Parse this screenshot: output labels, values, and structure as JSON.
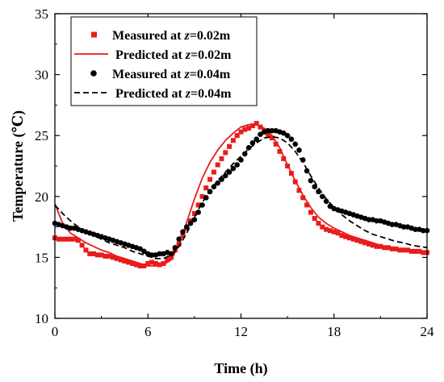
{
  "chart_data": {
    "type": "line",
    "xlabel": "Time (h)",
    "ylabel": "Temperature (℃)",
    "xlim": [
      0,
      24
    ],
    "ylim": [
      10,
      35
    ],
    "xticks": [
      "0",
      "6",
      "12",
      "18",
      "24"
    ],
    "yticks": [
      "10",
      "15",
      "20",
      "25",
      "30",
      "35"
    ],
    "grid": false,
    "legend_position": "top-left",
    "series": [
      {
        "name_prefix": "Measured at ",
        "name_var": "z",
        "name_suffix": "=0.02m",
        "style": "markers",
        "marker": "square",
        "color": "#e81c1c",
        "x": [
          0,
          0.25,
          0.5,
          0.75,
          1,
          1.25,
          1.5,
          1.75,
          2,
          2.25,
          2.5,
          2.75,
          3,
          3.25,
          3.5,
          3.75,
          4,
          4.25,
          4.5,
          4.75,
          5,
          5.25,
          5.5,
          5.75,
          6,
          6.25,
          6.5,
          6.75,
          7,
          7.25,
          7.5,
          7.75,
          8,
          8.25,
          8.5,
          8.75,
          9,
          9.25,
          9.5,
          9.75,
          10,
          10.25,
          10.5,
          10.75,
          11,
          11.25,
          11.5,
          11.75,
          12,
          12.25,
          12.5,
          12.75,
          13,
          13.25,
          13.5,
          13.75,
          14,
          14.25,
          14.5,
          14.75,
          15,
          15.25,
          15.5,
          15.75,
          16,
          16.25,
          16.5,
          16.75,
          17,
          17.25,
          17.5,
          17.75,
          18,
          18.25,
          18.5,
          18.75,
          19,
          19.25,
          19.5,
          19.75,
          20,
          20.25,
          20.5,
          20.75,
          21,
          21.25,
          21.5,
          21.75,
          22,
          22.25,
          22.5,
          22.75,
          23,
          23.25,
          23.5,
          23.75,
          24
        ],
        "y": [
          16.6,
          16.5,
          16.5,
          16.5,
          16.5,
          16.5,
          16.4,
          16.0,
          15.6,
          15.3,
          15.3,
          15.2,
          15.2,
          15.1,
          15.1,
          15.0,
          14.9,
          14.8,
          14.7,
          14.6,
          14.5,
          14.4,
          14.3,
          14.3,
          14.5,
          14.6,
          14.5,
          14.4,
          14.5,
          14.8,
          15.0,
          15.6,
          16.1,
          16.8,
          17.4,
          18.0,
          18.6,
          19.3,
          20.0,
          20.7,
          21.4,
          22.0,
          22.6,
          23.1,
          23.6,
          24.1,
          24.6,
          25.0,
          25.3,
          25.5,
          25.6,
          25.8,
          26.0,
          25.7,
          25.4,
          25.1,
          24.8,
          24.3,
          23.7,
          23.1,
          22.5,
          21.9,
          21.2,
          20.5,
          19.9,
          19.3,
          18.7,
          18.2,
          17.8,
          17.5,
          17.3,
          17.2,
          17.1,
          17.0,
          16.8,
          16.7,
          16.6,
          16.5,
          16.4,
          16.3,
          16.2,
          16.1,
          16.0,
          15.9,
          15.9,
          15.8,
          15.8,
          15.7,
          15.7,
          15.6,
          15.6,
          15.6,
          15.5,
          15.5,
          15.5,
          15.4,
          15.4
        ]
      },
      {
        "name_prefix": "Predicted at ",
        "name_var": "z",
        "name_suffix": "=0.02m",
        "style": "solid",
        "color": "#e81c1c",
        "x": [
          0,
          0.5,
          1,
          1.5,
          2,
          2.5,
          3,
          3.5,
          4,
          4.5,
          5,
          5.5,
          6,
          6.5,
          7,
          7.5,
          8,
          8.5,
          9,
          9.5,
          10,
          10.5,
          11,
          11.5,
          12,
          12.5,
          13,
          13.5,
          14,
          14.5,
          15,
          15.5,
          16,
          16.5,
          17,
          17.5,
          18,
          18.5,
          19,
          19.5,
          20,
          20.5,
          21,
          21.5,
          22,
          22.5,
          23,
          23.5,
          24
        ],
        "y": [
          19.4,
          17.8,
          17.0,
          16.6,
          16.2,
          15.9,
          15.6,
          15.4,
          15.1,
          14.9,
          14.7,
          14.5,
          14.3,
          14.3,
          14.4,
          14.8,
          16.0,
          17.9,
          19.8,
          21.5,
          22.8,
          23.8,
          24.6,
          25.2,
          25.7,
          25.9,
          25.9,
          25.6,
          25.0,
          24.0,
          22.6,
          21.3,
          20.1,
          19.1,
          18.3,
          17.8,
          17.4,
          17.1,
          16.8,
          16.6,
          16.4,
          16.2,
          16.0,
          15.8,
          15.7,
          15.6,
          15.5,
          15.4,
          15.3
        ]
      },
      {
        "name_prefix": "Measured at ",
        "name_var": "z",
        "name_suffix": "=0.04m",
        "style": "markers",
        "marker": "circle",
        "color": "#000000",
        "x": [
          0,
          0.25,
          0.5,
          0.75,
          1,
          1.25,
          1.5,
          1.75,
          2,
          2.25,
          2.5,
          2.75,
          3,
          3.25,
          3.5,
          3.75,
          4,
          4.25,
          4.5,
          4.75,
          5,
          5.25,
          5.5,
          5.75,
          6,
          6.25,
          6.5,
          6.75,
          7,
          7.25,
          7.5,
          7.75,
          8,
          8.25,
          8.5,
          8.75,
          9,
          9.25,
          9.5,
          9.75,
          10,
          10.25,
          10.5,
          10.75,
          11,
          11.25,
          11.5,
          11.75,
          12,
          12.25,
          12.5,
          12.75,
          13,
          13.25,
          13.5,
          13.75,
          14,
          14.25,
          14.5,
          14.75,
          15,
          15.25,
          15.5,
          15.75,
          16,
          16.25,
          16.5,
          16.75,
          17,
          17.25,
          17.5,
          17.75,
          18,
          18.25,
          18.5,
          18.75,
          19,
          19.25,
          19.5,
          19.75,
          20,
          20.25,
          20.5,
          20.75,
          21,
          21.25,
          21.5,
          21.75,
          22,
          22.25,
          22.5,
          22.75,
          23,
          23.25,
          23.5,
          23.75,
          24
        ],
        "y": [
          17.8,
          17.7,
          17.6,
          17.5,
          17.4,
          17.4,
          17.3,
          17.2,
          17.1,
          17.0,
          16.9,
          16.8,
          16.7,
          16.6,
          16.5,
          16.4,
          16.3,
          16.2,
          16.1,
          16.0,
          15.9,
          15.8,
          15.7,
          15.5,
          15.3,
          15.2,
          15.2,
          15.3,
          15.3,
          15.4,
          15.3,
          15.8,
          16.5,
          17.1,
          17.5,
          17.8,
          18.1,
          18.7,
          19.3,
          19.9,
          20.4,
          20.8,
          21.1,
          21.4,
          21.7,
          22.0,
          22.3,
          22.6,
          23.0,
          23.5,
          24.0,
          24.4,
          24.7,
          25.1,
          25.3,
          25.4,
          25.4,
          25.4,
          25.3,
          25.2,
          25.0,
          24.7,
          24.3,
          23.8,
          23.0,
          22.1,
          21.3,
          20.8,
          20.4,
          20.0,
          19.6,
          19.2,
          19.0,
          18.9,
          18.8,
          18.7,
          18.6,
          18.5,
          18.4,
          18.3,
          18.2,
          18.1,
          18.1,
          18.0,
          18.0,
          17.9,
          17.8,
          17.7,
          17.7,
          17.6,
          17.5,
          17.5,
          17.4,
          17.3,
          17.3,
          17.2,
          17.2
        ]
      },
      {
        "name_prefix": "Predicted at ",
        "name_var": "z",
        "name_suffix": "=0.04m",
        "style": "dashed",
        "color": "#000000",
        "x": [
          0,
          0.5,
          1,
          1.5,
          2,
          2.5,
          3,
          3.5,
          4,
          4.5,
          5,
          5.5,
          6,
          6.5,
          7,
          7.5,
          8,
          8.5,
          9,
          9.5,
          10,
          10.5,
          11,
          11.5,
          12,
          12.5,
          13,
          13.5,
          14,
          14.5,
          15,
          15.5,
          16,
          16.5,
          17,
          17.5,
          18,
          18.5,
          19,
          19.5,
          20,
          20.5,
          21,
          21.5,
          22,
          22.5,
          23,
          23.5,
          24
        ],
        "y": [
          19.3,
          18.6,
          18.0,
          17.5,
          17.1,
          16.8,
          16.5,
          16.2,
          16.0,
          15.8,
          15.5,
          15.3,
          15.1,
          14.9,
          14.9,
          15.2,
          15.9,
          17.0,
          18.3,
          19.5,
          20.5,
          21.3,
          22.0,
          22.7,
          23.3,
          23.9,
          24.4,
          24.8,
          24.9,
          24.8,
          24.4,
          23.7,
          22.8,
          21.7,
          20.7,
          19.8,
          19.1,
          18.5,
          18.0,
          17.6,
          17.2,
          16.9,
          16.7,
          16.5,
          16.3,
          16.2,
          16.0,
          15.9,
          15.8
        ]
      }
    ]
  }
}
